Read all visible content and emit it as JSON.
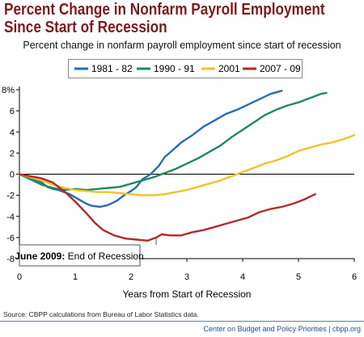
{
  "title_lines": [
    "Percent Change in Nonfarm Payroll Employment",
    "Since Start of Recession"
  ],
  "subtitle": "Percent change in nonfarm payroll employment since start of recession",
  "source": "Source: CBPP calculations from Bureau of Labor Statistics data.",
  "credit": "Center on Budget and Policy Priorities | cbpp.org",
  "chart_data": {
    "type": "line",
    "title": "Percent change in nonfarm payroll employment since start of recession",
    "xlabel": "Years from Start of Recession",
    "ylabel": "",
    "xlim": [
      0,
      6
    ],
    "ylim": [
      -8,
      8
    ],
    "x_ticks": [
      "0",
      "1",
      "2",
      "3",
      "4",
      "5",
      "6"
    ],
    "y_ticks": [
      "8%",
      "6",
      "4",
      "2",
      "0",
      "-2",
      "-4",
      "-6",
      "-8"
    ],
    "legend_position": "top",
    "annotation": {
      "bold": "June 2009:",
      "text": "End of Recession"
    },
    "series": [
      {
        "name": "1981 - 82",
        "color": "#2b6bb0",
        "points": [
          [
            0,
            0
          ],
          [
            0.2,
            -0.3
          ],
          [
            0.4,
            -0.8
          ],
          [
            0.5,
            -1.2
          ],
          [
            0.6,
            -1.4
          ],
          [
            0.7,
            -1.5
          ],
          [
            0.8,
            -1.7
          ],
          [
            0.9,
            -1.9
          ],
          [
            1.0,
            -2.2
          ],
          [
            1.1,
            -2.5
          ],
          [
            1.2,
            -2.8
          ],
          [
            1.3,
            -3.0
          ],
          [
            1.45,
            -3.1
          ],
          [
            1.6,
            -2.9
          ],
          [
            1.75,
            -2.5
          ],
          [
            1.9,
            -1.9
          ],
          [
            2.0,
            -1.6
          ],
          [
            2.1,
            -1.2
          ],
          [
            2.2,
            -0.5
          ],
          [
            2.35,
            0
          ],
          [
            2.5,
            0.8
          ],
          [
            2.6,
            1.6
          ],
          [
            2.75,
            2.3
          ],
          [
            2.9,
            3.0
          ],
          [
            3.1,
            3.7
          ],
          [
            3.3,
            4.5
          ],
          [
            3.5,
            5.1
          ],
          [
            3.7,
            5.7
          ],
          [
            3.9,
            6.1
          ],
          [
            4.1,
            6.6
          ],
          [
            4.3,
            7.1
          ],
          [
            4.5,
            7.6
          ],
          [
            4.7,
            7.9
          ]
        ]
      },
      {
        "name": "1990 - 91",
        "color": "#1f8a5a",
        "points": [
          [
            0,
            0
          ],
          [
            0.2,
            -0.5
          ],
          [
            0.4,
            -1.0
          ],
          [
            0.6,
            -1.3
          ],
          [
            0.8,
            -1.5
          ],
          [
            1.0,
            -1.4
          ],
          [
            1.2,
            -1.5
          ],
          [
            1.4,
            -1.4
          ],
          [
            1.6,
            -1.3
          ],
          [
            1.8,
            -1.2
          ],
          [
            2.0,
            -0.9
          ],
          [
            2.2,
            -0.6
          ],
          [
            2.4,
            -0.3
          ],
          [
            2.6,
            0.1
          ],
          [
            2.8,
            0.5
          ],
          [
            3.0,
            1.0
          ],
          [
            3.2,
            1.5
          ],
          [
            3.4,
            2.1
          ],
          [
            3.6,
            2.7
          ],
          [
            3.8,
            3.5
          ],
          [
            4.0,
            4.2
          ],
          [
            4.2,
            4.9
          ],
          [
            4.4,
            5.6
          ],
          [
            4.6,
            6.1
          ],
          [
            4.8,
            6.5
          ],
          [
            5.0,
            6.8
          ],
          [
            5.2,
            7.2
          ],
          [
            5.4,
            7.6
          ],
          [
            5.5,
            7.7
          ]
        ]
      },
      {
        "name": "2001",
        "color": "#f0c22a",
        "points": [
          [
            0,
            0
          ],
          [
            0.2,
            -0.3
          ],
          [
            0.4,
            -0.6
          ],
          [
            0.6,
            -1.0
          ],
          [
            0.8,
            -1.3
          ],
          [
            1.0,
            -1.5
          ],
          [
            1.2,
            -1.6
          ],
          [
            1.4,
            -1.7
          ],
          [
            1.6,
            -1.7
          ],
          [
            1.8,
            -1.8
          ],
          [
            2.0,
            -1.9
          ],
          [
            2.2,
            -2.0
          ],
          [
            2.4,
            -2.0
          ],
          [
            2.6,
            -1.9
          ],
          [
            2.8,
            -1.7
          ],
          [
            3.0,
            -1.5
          ],
          [
            3.2,
            -1.2
          ],
          [
            3.4,
            -0.9
          ],
          [
            3.6,
            -0.6
          ],
          [
            3.8,
            -0.2
          ],
          [
            4.0,
            0.2
          ],
          [
            4.2,
            0.6
          ],
          [
            4.4,
            1.0
          ],
          [
            4.6,
            1.3
          ],
          [
            4.8,
            1.7
          ],
          [
            5.0,
            2.2
          ],
          [
            5.2,
            2.5
          ],
          [
            5.4,
            2.8
          ],
          [
            5.6,
            3.0
          ],
          [
            5.8,
            3.3
          ],
          [
            6.0,
            3.7
          ]
        ]
      },
      {
        "name": "2007 - 09",
        "color": "#b22a2a",
        "points": [
          [
            0,
            0
          ],
          [
            0.2,
            -0.2
          ],
          [
            0.4,
            -0.4
          ],
          [
            0.6,
            -0.8
          ],
          [
            0.8,
            -1.6
          ],
          [
            1.0,
            -2.6
          ],
          [
            1.2,
            -3.7
          ],
          [
            1.35,
            -4.6
          ],
          [
            1.5,
            -5.3
          ],
          [
            1.7,
            -5.8
          ],
          [
            1.9,
            -6.1
          ],
          [
            2.1,
            -6.2
          ],
          [
            2.3,
            -6.3
          ],
          [
            2.45,
            -6.0
          ],
          [
            2.55,
            -5.7
          ],
          [
            2.7,
            -5.8
          ],
          [
            2.9,
            -5.8
          ],
          [
            3.1,
            -5.5
          ],
          [
            3.3,
            -5.3
          ],
          [
            3.5,
            -5.0
          ],
          [
            3.7,
            -4.7
          ],
          [
            3.9,
            -4.4
          ],
          [
            4.1,
            -4.1
          ],
          [
            4.3,
            -3.6
          ],
          [
            4.5,
            -3.3
          ],
          [
            4.7,
            -3.1
          ],
          [
            4.9,
            -2.8
          ],
          [
            5.1,
            -2.4
          ],
          [
            5.3,
            -1.9
          ]
        ]
      }
    ]
  }
}
